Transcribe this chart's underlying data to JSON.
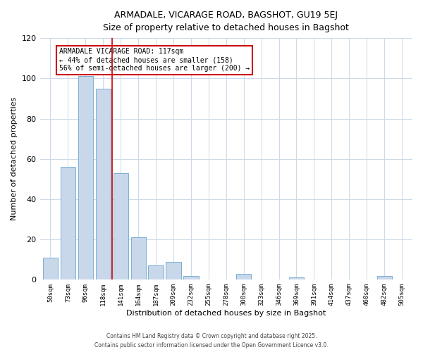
{
  "title_line1": "ARMADALE, VICARAGE ROAD, BAGSHOT, GU19 5EJ",
  "title_line2": "Size of property relative to detached houses in Bagshot",
  "xlabel": "Distribution of detached houses by size in Bagshot",
  "ylabel": "Number of detached properties",
  "bar_labels": [
    "50sqm",
    "73sqm",
    "96sqm",
    "118sqm",
    "141sqm",
    "164sqm",
    "187sqm",
    "209sqm",
    "232sqm",
    "255sqm",
    "278sqm",
    "300sqm",
    "323sqm",
    "346sqm",
    "369sqm",
    "391sqm",
    "414sqm",
    "437sqm",
    "460sqm",
    "482sqm",
    "505sqm"
  ],
  "bar_heights": [
    11,
    56,
    101,
    95,
    53,
    21,
    7,
    9,
    2,
    0,
    0,
    3,
    0,
    0,
    1,
    0,
    0,
    0,
    0,
    2,
    0
  ],
  "bar_color": "#c8d8ea",
  "bar_edgecolor": "#7bafd4",
  "vline_x": 3.5,
  "vline_color": "#cc0000",
  "annotation_title": "ARMADALE VICARAGE ROAD: 117sqm",
  "annotation_line2": "← 44% of detached houses are smaller (158)",
  "annotation_line3": "56% of semi-detached houses are larger (200) →",
  "annotation_box_edgecolor": "#cc0000",
  "annotation_box_facecolor": "#ffffff",
  "ylim": [
    0,
    120
  ],
  "yticks": [
    0,
    20,
    40,
    60,
    80,
    100,
    120
  ],
  "footer_line1": "Contains HM Land Registry data © Crown copyright and database right 2025.",
  "footer_line2": "Contains public sector information licensed under the Open Government Licence v3.0.",
  "background_color": "#ffffff",
  "grid_color": "#ccd9e8"
}
